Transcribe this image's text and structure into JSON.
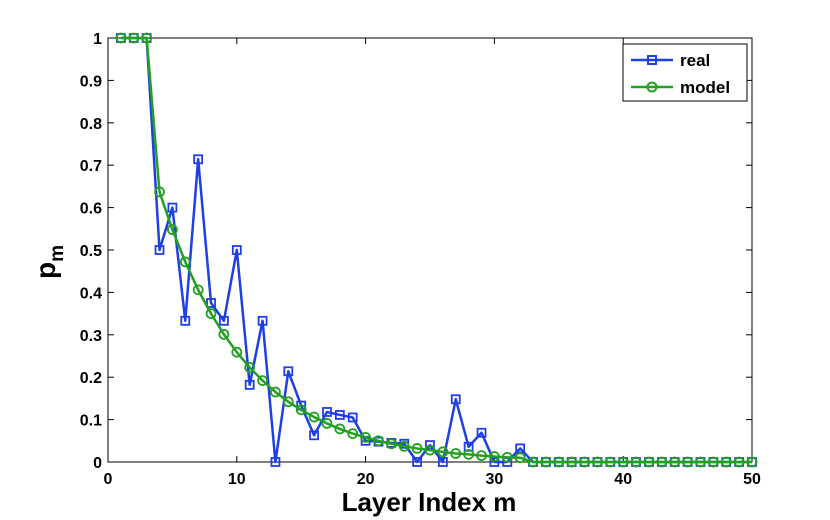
{
  "chart_data": {
    "type": "line",
    "xlabel": "Layer Index m",
    "ylabel": "p",
    "ylabel_subscript": "m",
    "xlim": [
      0,
      50
    ],
    "ylim": [
      0,
      1
    ],
    "xticks": [
      0,
      10,
      20,
      30,
      40,
      50
    ],
    "yticks": [
      0,
      0.1,
      0.2,
      0.3,
      0.4,
      0.5,
      0.6,
      0.7,
      0.8,
      0.9,
      1
    ],
    "grid": false,
    "legend_position": "top-right",
    "x": [
      1,
      2,
      3,
      4,
      5,
      6,
      7,
      8,
      9,
      10,
      11,
      12,
      13,
      14,
      15,
      16,
      17,
      18,
      19,
      20,
      21,
      22,
      23,
      24,
      25,
      26,
      27,
      28,
      29,
      30,
      31,
      32,
      33,
      34,
      35,
      36,
      37,
      38,
      39,
      40,
      41,
      42,
      43,
      44,
      45,
      46,
      47,
      48,
      49,
      50
    ],
    "series": [
      {
        "name": "real",
        "color": "#1f3fe6",
        "marker": "square",
        "values": [
          1,
          1,
          1,
          0.5,
          0.6,
          0.333,
          0.714,
          0.375,
          0.333,
          0.5,
          0.182,
          0.333,
          0,
          0.214,
          0.133,
          0.063,
          0.118,
          0.111,
          0.105,
          0.05,
          0.048,
          0.045,
          0.043,
          0,
          0.04,
          0,
          0.148,
          0.036,
          0.069,
          0,
          0,
          0.032,
          0,
          0,
          0,
          0,
          0,
          0,
          0,
          0,
          0,
          0,
          0,
          0,
          0,
          0,
          0,
          0,
          0,
          0
        ]
      },
      {
        "name": "model",
        "color": "#22a020",
        "marker": "circle",
        "values": [
          1,
          1,
          1,
          0.637,
          0.548,
          0.472,
          0.406,
          0.35,
          0.301,
          0.259,
          0.223,
          0.192,
          0.165,
          0.142,
          0.123,
          0.106,
          0.091,
          0.078,
          0.067,
          0.058,
          0.05,
          0.043,
          0.037,
          0.032,
          0.028,
          0.024,
          0.02,
          0.018,
          0.015,
          0.013,
          0.011,
          0.01,
          0,
          0,
          0,
          0,
          0,
          0,
          0,
          0,
          0,
          0,
          0,
          0,
          0,
          0,
          0,
          0,
          0,
          0
        ]
      }
    ]
  }
}
